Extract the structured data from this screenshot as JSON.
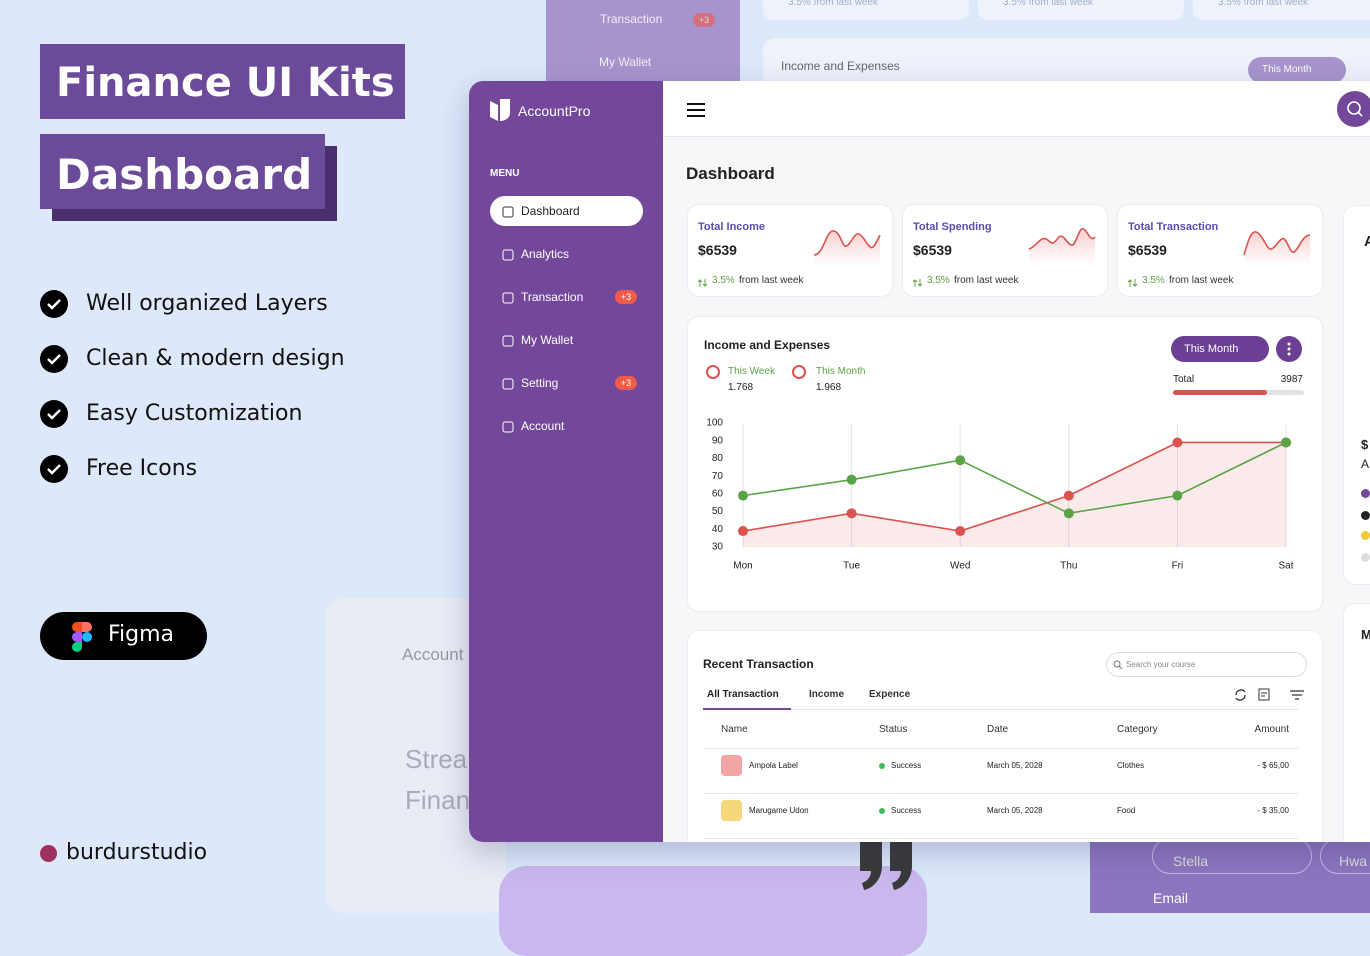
{
  "promo": {
    "title_line1": "Finance UI Kits",
    "title_line2": "Dashboard",
    "features": [
      "Well organized Layers",
      "Clean & modern design",
      "Easy Customization",
      "Free Icons"
    ],
    "tool": "Figma",
    "brand": "burdurstudio"
  },
  "background": {
    "menu": [
      "Transaction",
      "My Wallet"
    ],
    "badge": "+3",
    "card_title": "Income and Expenses",
    "filter": "This Month",
    "stat_notes": [
      "3.5% from last week",
      "3.5% from last week",
      "3.5% from last week"
    ],
    "preview_logo": "Account",
    "preview_lines": [
      "Strea",
      "Finan"
    ],
    "inputs": [
      "Stella",
      "Hwa"
    ],
    "field_label": "Email"
  },
  "app": {
    "logo": "AccountPro",
    "menu_label": "MENU",
    "menu": [
      {
        "label": "Dashboard"
      },
      {
        "label": "Analytics"
      },
      {
        "label": "Transaction",
        "badge": "+3"
      },
      {
        "label": "My Wallet"
      },
      {
        "label": "Setting",
        "badge": "+3"
      },
      {
        "label": "Account"
      }
    ],
    "page_title": "Dashboard",
    "stats": [
      {
        "title": "Total Income",
        "value": "$6539",
        "change": "3.5%",
        "note": "from last week"
      },
      {
        "title": "Total Spending",
        "value": "$6539",
        "change": "3.5%",
        "note": "from last week"
      },
      {
        "title": "Total Transaction",
        "value": "$6539",
        "change": "3.5%",
        "note": "from last week"
      }
    ],
    "chart_card": {
      "title": "Income and Expenses",
      "filter": "This Month",
      "legend_values": [
        "1.768",
        "1.968"
      ],
      "total_label": "Total",
      "total_value": 3987
    },
    "chart_data": {
      "type": "line",
      "categories": [
        "Mon",
        "Tue",
        "Wed",
        "Thu",
        "Fri",
        "Sat"
      ],
      "series": [
        {
          "name": "This Week",
          "color": "#5aa446",
          "values": [
            59,
            68,
            79,
            49,
            59,
            89
          ]
        },
        {
          "name": "This Month",
          "color": "#d9534f",
          "area": true,
          "values": [
            39,
            49,
            39,
            59,
            89,
            89
          ]
        }
      ],
      "ylim": [
        30,
        100
      ],
      "yticks": [
        30,
        40,
        50,
        60,
        70,
        80,
        90,
        100
      ]
    },
    "transactions": {
      "title": "Recent Transaction",
      "search": "Search your course",
      "tabs": [
        "All Transaction",
        "Income",
        "Expence"
      ],
      "columns": [
        "Name",
        "Status",
        "Date",
        "Category",
        "Amount"
      ],
      "rows": [
        [
          "Ampola Label",
          "Success",
          "March 05, 2028",
          "Clothes",
          "- $ 65,00"
        ],
        [
          "Marugame Udon",
          "Success",
          "March 05, 2028",
          "Food",
          "- $ 35,00"
        ]
      ]
    },
    "side_cards": [
      "A",
      "$",
      "A",
      "M"
    ]
  }
}
